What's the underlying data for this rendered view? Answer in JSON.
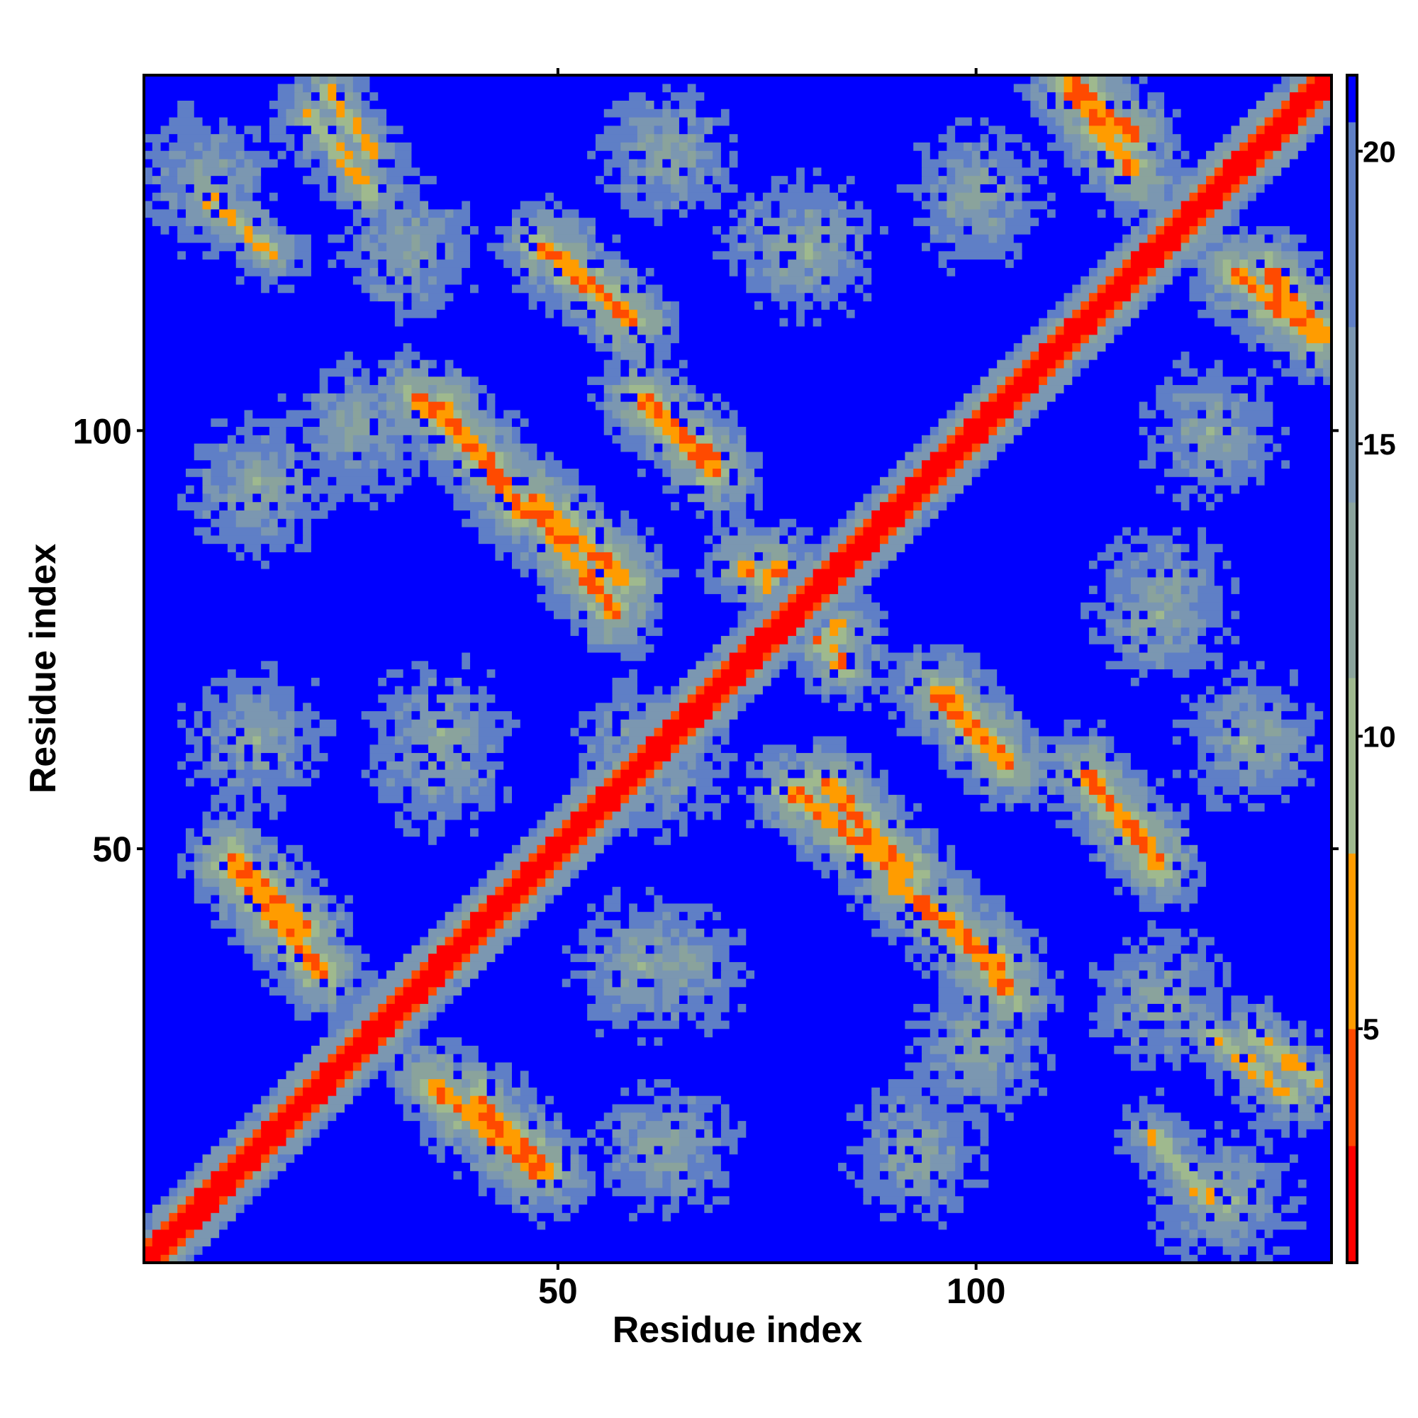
{
  "chart_data": {
    "type": "heatmap",
    "title": "",
    "xlabel": "Residue index",
    "ylabel": "Residue index",
    "n_residues": 142,
    "xlim": [
      1,
      142
    ],
    "ylim": [
      1,
      142
    ],
    "x_ticks": [
      50,
      100
    ],
    "x_tick_labels": [
      "50",
      "100"
    ],
    "y_ticks": [
      50,
      100
    ],
    "y_tick_labels": [
      "50",
      "100"
    ],
    "grid": false,
    "legend": "colorbar on the right",
    "colorbar": {
      "range": [
        1,
        21.3
      ],
      "ticks": [
        5,
        10,
        15,
        20
      ],
      "tick_labels": [
        "5",
        "10",
        "15",
        "20"
      ],
      "bands": [
        {
          "from": 1.0,
          "to": 3.0,
          "color": "#ff0000"
        },
        {
          "from": 3.0,
          "to": 5.0,
          "color": "#ff4a00"
        },
        {
          "from": 5.0,
          "to": 8.0,
          "color": "#ff9c00"
        },
        {
          "from": 8.0,
          "to": 11.0,
          "color": "#9fb98e"
        },
        {
          "from": 11.0,
          "to": 14.0,
          "color": "#8aa39c"
        },
        {
          "from": 14.0,
          "to": 17.0,
          "color": "#7b97b1"
        },
        {
          "from": 17.0,
          "to": 20.5,
          "color": "#5f7fc6"
        },
        {
          "from": 20.5,
          "to": 21.3,
          "color": "#0000ff"
        }
      ]
    },
    "value_meaning": "pairwise residue distance; diagonal = 1, off-diagonal contacts shown as warm bands",
    "diagonal_value": 1,
    "background_value": 21,
    "contact_bands": [
      {
        "x": [
          11,
          20
        ],
        "y": [
          49,
          40
        ],
        "value": 5.5
      },
      {
        "x": [
          35,
          48
        ],
        "y": [
          22,
          11
        ],
        "value": 5.5
      },
      {
        "x": [
          33,
          42
        ],
        "y": [
          104,
          96
        ],
        "value": 5.5
      },
      {
        "x": [
          47,
          58
        ],
        "y": [
          92,
          82
        ],
        "value": 5.5
      },
      {
        "x": [
          48,
          58
        ],
        "y": [
          122,
          114
        ],
        "value": 5.5
      },
      {
        "x": [
          60,
          69
        ],
        "y": [
          104,
          96
        ],
        "value": 5.5
      },
      {
        "x": [
          72,
          84
        ],
        "y": [
          84,
          76
        ],
        "value": 6.5
      },
      {
        "x": [
          78,
          91
        ],
        "y": [
          57,
          47
        ],
        "value": 5.5
      },
      {
        "x": [
          90,
          103
        ],
        "y": [
          46,
          36
        ],
        "value": 5.5
      },
      {
        "x": [
          95,
          103
        ],
        "y": [
          69,
          61
        ],
        "value": 5.5
      },
      {
        "x": [
          113,
          121
        ],
        "y": [
          59,
          50
        ],
        "value": 5.5
      },
      {
        "x": [
          111,
          119
        ],
        "y": [
          142,
          135
        ],
        "value": 5.5
      },
      {
        "x": [
          131,
          141
        ],
        "y": [
          119,
          111
        ],
        "value": 5.5
      },
      {
        "x": [
          20,
          28
        ],
        "y": [
          138,
          128
        ],
        "value": 8.5
      },
      {
        "x": [
          121,
          128
        ],
        "y": [
          16,
          8
        ],
        "value": 8.5
      },
      {
        "x": [
          133,
          141
        ],
        "y": [
          28,
          22
        ],
        "value": 8.5
      }
    ],
    "halo_regions": [
      {
        "x": 14,
        "y": 63,
        "value": 12
      },
      {
        "x": 26,
        "y": 100,
        "value": 12
      },
      {
        "x": 36,
        "y": 64,
        "value": 12
      },
      {
        "x": 60,
        "y": 36,
        "value": 12
      },
      {
        "x": 62,
        "y": 60,
        "value": 12
      },
      {
        "x": 80,
        "y": 122,
        "value": 12
      },
      {
        "x": 63,
        "y": 133,
        "value": 12
      },
      {
        "x": 93,
        "y": 14,
        "value": 12
      },
      {
        "x": 122,
        "y": 78,
        "value": 12
      },
      {
        "x": 100,
        "y": 128,
        "value": 12
      },
      {
        "x": 122,
        "y": 32,
        "value": 12
      },
      {
        "x": 8,
        "y": 130,
        "value": 12
      }
    ]
  }
}
